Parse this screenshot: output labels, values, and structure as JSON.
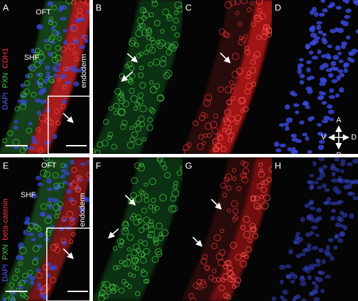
{
  "rows": [
    {
      "panels": [
        "A",
        "B",
        "C",
        "D"
      ],
      "stain": [
        "DAPI",
        "PXN",
        "CDH1"
      ],
      "oft": "OFT",
      "shf": "SHF",
      "endoderm": "endoderm"
    },
    {
      "panels": [
        "E",
        "F",
        "G",
        "H"
      ],
      "stain": [
        "DAPI",
        "PXN",
        "beta-catenin"
      ],
      "oft": "OFT",
      "shf": "SHF",
      "endoderm": "endoderm"
    }
  ],
  "orientation": {
    "anterior": "A",
    "posterior": "P",
    "ventral": "V",
    "dorsal": "D"
  }
}
